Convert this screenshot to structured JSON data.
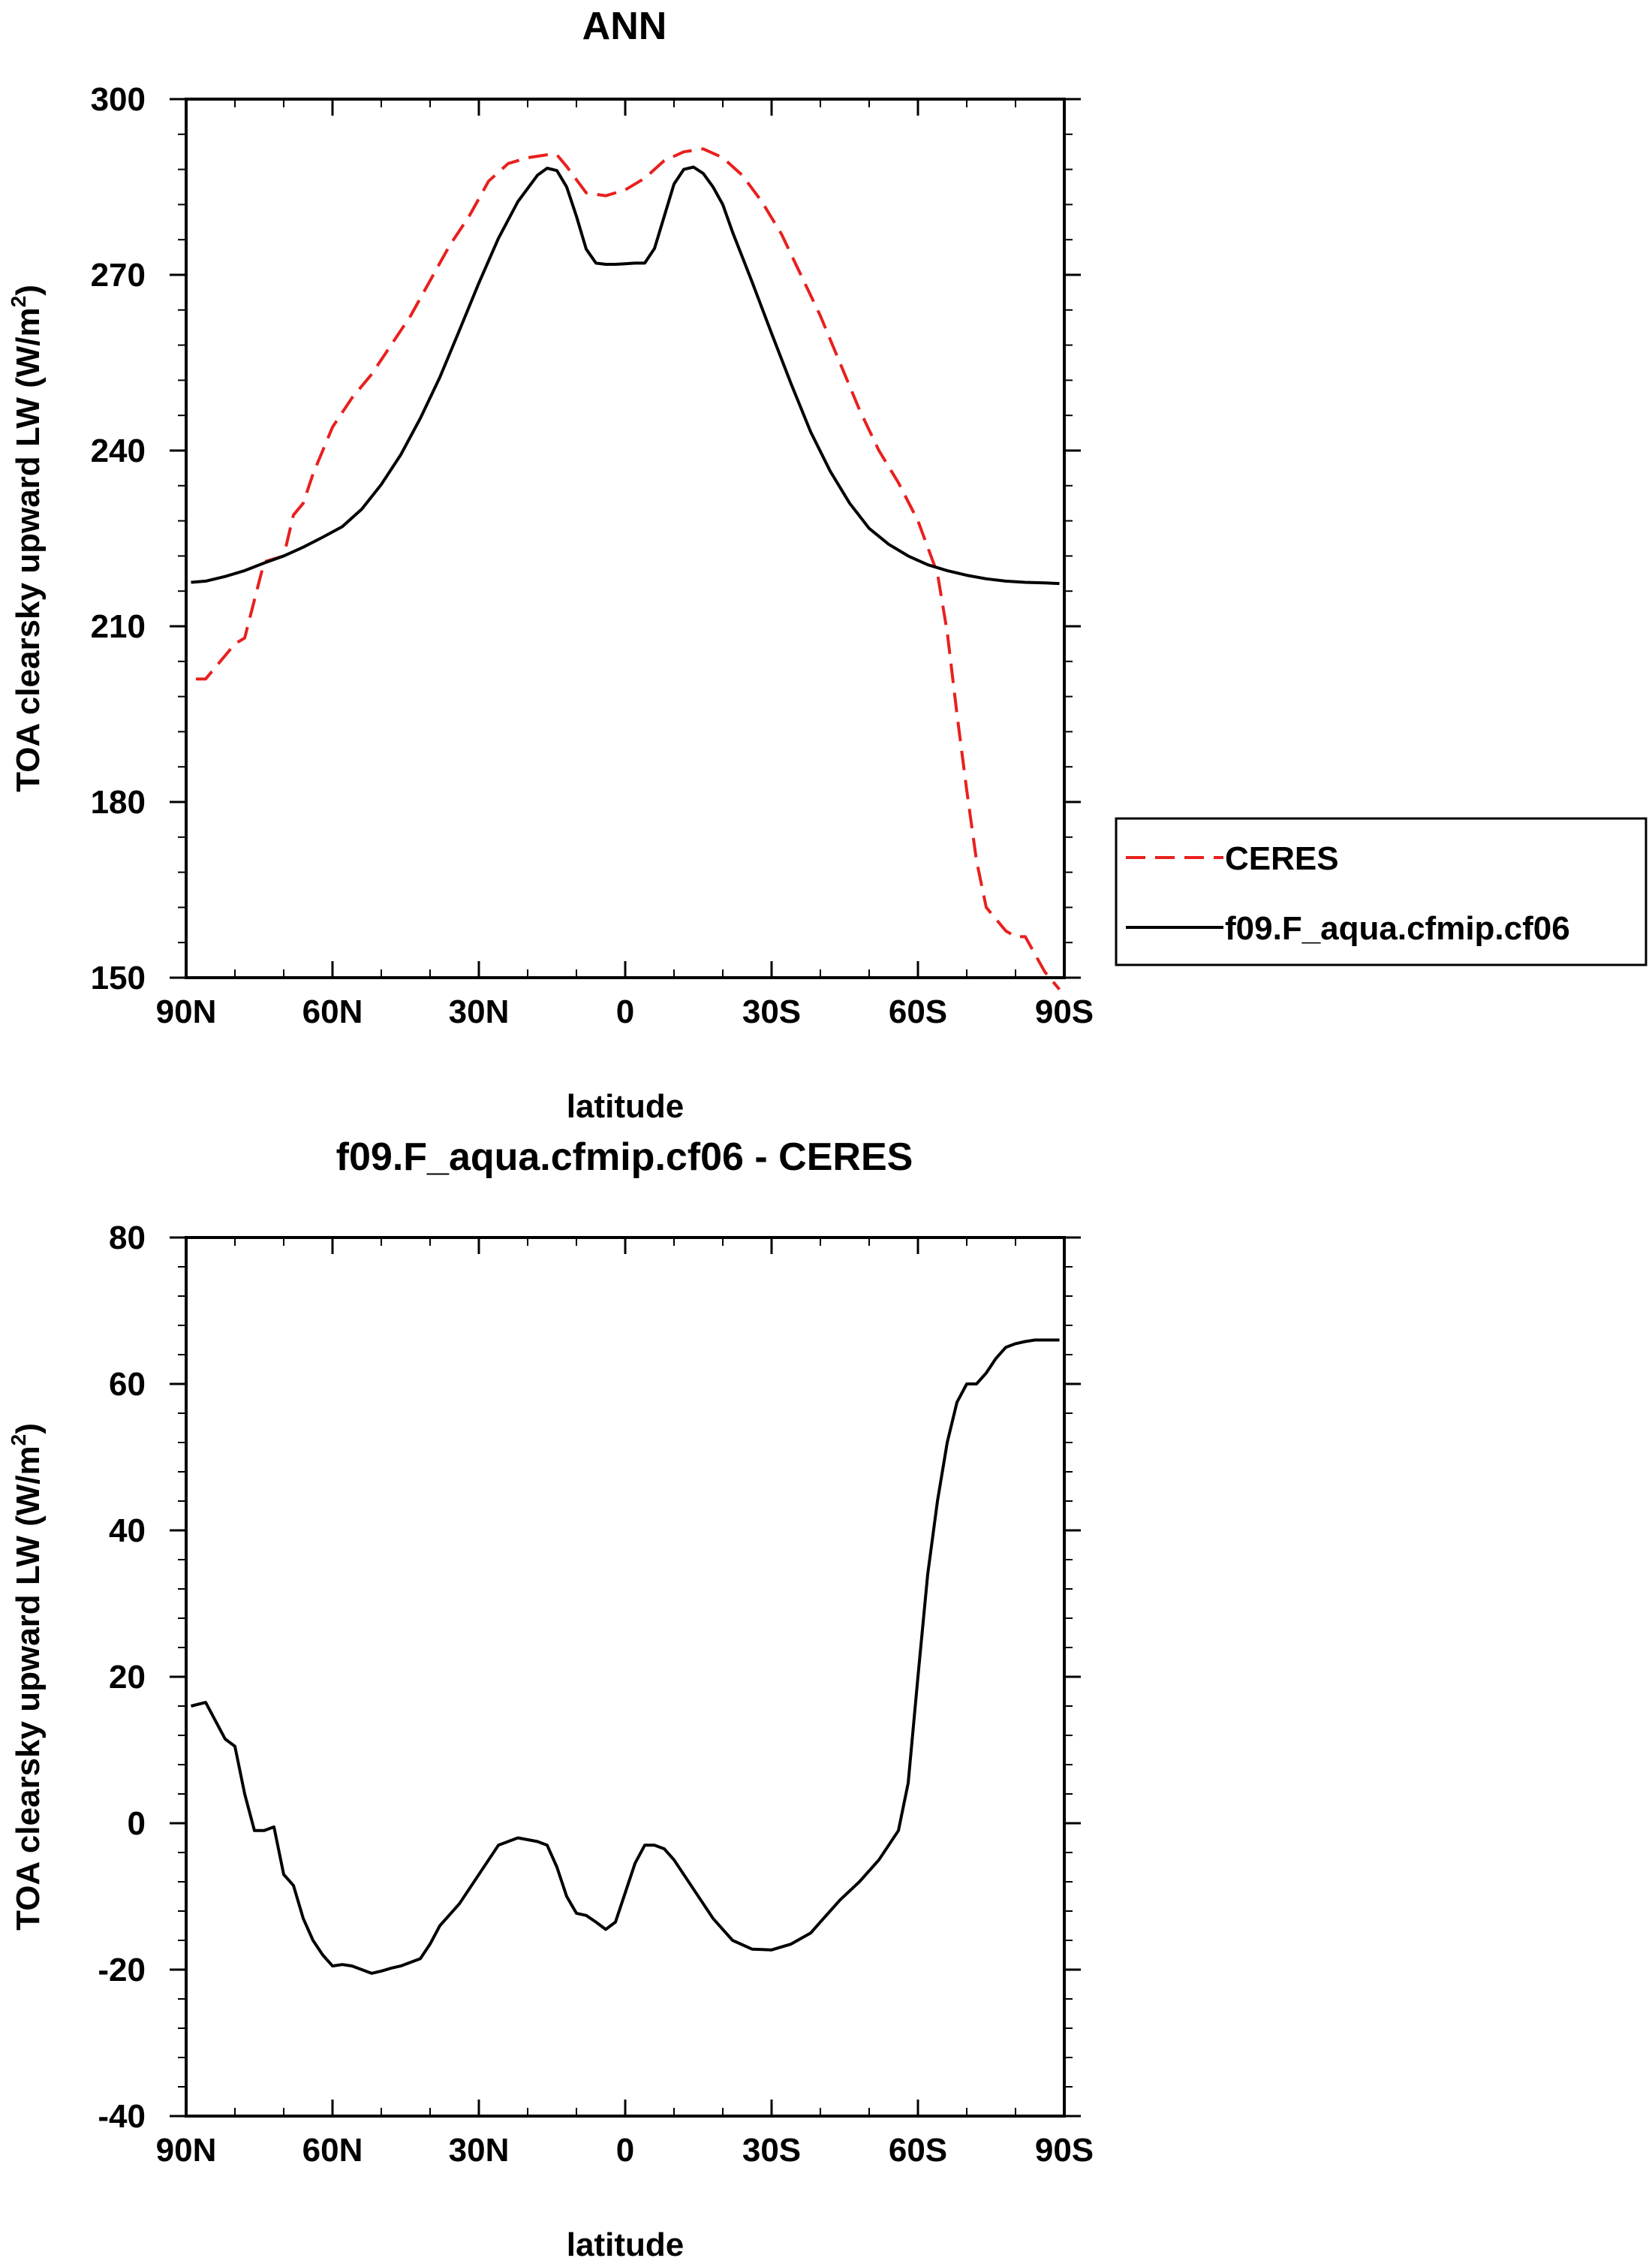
{
  "chart_data": [
    {
      "type": "line",
      "title": "ANN",
      "xlabel": "latitude",
      "ylabel": "TOA clearsky upward LW (W/m²)",
      "ylabel_parts": [
        "TOA clearsky upward LW (W/m",
        "2",
        ")"
      ],
      "xlim": [
        90,
        -90
      ],
      "ylim": [
        150,
        300
      ],
      "xticks": [
        90,
        60,
        30,
        0,
        -30,
        -60,
        -90
      ],
      "xtick_labels": [
        "90N",
        "60N",
        "30N",
        "0",
        "30S",
        "60S",
        "90S"
      ],
      "yticks": [
        150,
        180,
        210,
        240,
        270,
        300
      ],
      "ytick_labels": [
        "150",
        "180",
        "210",
        "240",
        "270",
        "300"
      ],
      "legend": [
        "CERES",
        "f09.F_aqua.cfmip.cf06"
      ],
      "series": [
        {
          "name": "CERES",
          "color": "#e8201e",
          "dash": "dashed",
          "x": [
            88,
            86,
            80,
            78,
            74,
            70,
            68,
            66,
            64,
            60,
            56,
            52,
            48,
            44,
            40,
            36,
            32,
            28,
            24,
            20,
            16,
            14,
            12,
            8,
            4,
            0,
            -4,
            -8,
            -12,
            -16,
            -20,
            -24,
            -28,
            -32,
            -36,
            -40,
            -44,
            -48,
            -52,
            -56,
            -60,
            -64,
            -66,
            -68,
            -70,
            -72,
            -74,
            -76,
            -78,
            -80,
            -82,
            -84,
            -86,
            -88,
            -89
          ],
          "y": [
            201,
            201,
            207,
            208,
            221,
            222,
            229,
            231,
            236,
            244,
            249,
            253,
            258,
            263,
            269,
            275,
            280,
            286,
            289,
            290,
            290.5,
            290.5,
            288.5,
            284,
            283.5,
            284.5,
            286.5,
            289.5,
            291,
            291.5,
            290,
            287,
            282.5,
            277,
            270,
            263,
            255,
            247,
            240,
            234.5,
            228,
            219,
            209,
            195,
            182,
            170,
            162,
            160,
            158,
            157,
            157,
            154,
            151,
            149,
            148
          ]
        },
        {
          "name": "f09.F_aqua.cfmip.cf06",
          "color": "#000000",
          "dash": "solid",
          "x": [
            89,
            86,
            82,
            78,
            74,
            70,
            66,
            62,
            58,
            54,
            50,
            46,
            42,
            38,
            34,
            30,
            26,
            22,
            18,
            16,
            14,
            12,
            10,
            8,
            6,
            4,
            2,
            0,
            -2,
            -4,
            -6,
            -8,
            -10,
            -12,
            -14,
            -16,
            -18,
            -20,
            -22,
            -26,
            -30,
            -34,
            -38,
            -42,
            -46,
            -50,
            -54,
            -58,
            -62,
            -66,
            -70,
            -74,
            -78,
            -82,
            -86,
            -89
          ],
          "y": [
            217.5,
            217.7,
            218.5,
            219.5,
            220.8,
            222,
            223.5,
            225.2,
            227,
            230,
            234.2,
            239.3,
            245.5,
            252.5,
            260.5,
            268.6,
            276.2,
            282.5,
            287,
            288.2,
            287.8,
            285,
            280,
            274.4,
            272,
            271.8,
            271.8,
            271.9,
            272,
            272,
            274.5,
            280,
            285.5,
            288,
            288.4,
            287.3,
            285,
            282,
            277.3,
            268.8,
            260,
            251.4,
            243.2,
            236.5,
            231,
            226.7,
            224,
            222,
            220.5,
            219.5,
            218.7,
            218.1,
            217.7,
            217.5,
            217.4,
            217.3
          ]
        }
      ]
    },
    {
      "type": "line",
      "title": "f09.F_aqua.cfmip.cf06 - CERES",
      "xlabel": "latitude",
      "ylabel": "TOA clearsky upward LW (W/m²)",
      "ylabel_parts": [
        "TOA clearsky upward LW (W/m",
        "2",
        ")"
      ],
      "xlim": [
        90,
        -90
      ],
      "ylim": [
        -40,
        80
      ],
      "xticks": [
        90,
        60,
        30,
        0,
        -30,
        -60,
        -90
      ],
      "xtick_labels": [
        "90N",
        "60N",
        "30N",
        "0",
        "30S",
        "60S",
        "90S"
      ],
      "yticks": [
        -40,
        -20,
        0,
        20,
        40,
        60,
        80
      ],
      "ytick_labels": [
        "-40",
        "-20",
        "0",
        "20",
        "40",
        "60",
        "80"
      ],
      "series": [
        {
          "name": "f09.F_aqua.cfmip.cf06 - CERES",
          "color": "#000000",
          "dash": "solid",
          "x": [
            89,
            86,
            82,
            80,
            78,
            76,
            74,
            72,
            70,
            68,
            66,
            64,
            62,
            60,
            58,
            56,
            54,
            52,
            50,
            48,
            46,
            44,
            42,
            40,
            38,
            36,
            34,
            30,
            26,
            22,
            18,
            16,
            14,
            12,
            10,
            8,
            6,
            4,
            2,
            0,
            -2,
            -4,
            -6,
            -8,
            -10,
            -12,
            -14,
            -16,
            -18,
            -20,
            -22,
            -26,
            -30,
            -34,
            -38,
            -40,
            -42,
            -44,
            -48,
            -52,
            -56,
            -58,
            -60,
            -62,
            -64,
            -66,
            -68,
            -70,
            -72,
            -74,
            -76,
            -78,
            -80,
            -82,
            -84,
            -86,
            -88,
            -89
          ],
          "y": [
            16,
            16.5,
            11.5,
            10.5,
            4,
            -1,
            -1,
            -0.5,
            -7,
            -8.5,
            -13,
            -16,
            -18,
            -19.5,
            -19.3,
            -19.5,
            -20,
            -20.5,
            -20.2,
            -19.8,
            -19.5,
            -19,
            -18.5,
            -16.5,
            -14,
            -12.5,
            -11,
            -7,
            -3,
            -2,
            -2.5,
            -3,
            -6,
            -10,
            -12.3,
            -12.6,
            -13.5,
            -14.5,
            -13.5,
            -9.5,
            -5.5,
            -3,
            -3,
            -3.5,
            -5,
            -7,
            -9,
            -11,
            -13,
            -14.5,
            -16,
            -17.2,
            -17.3,
            -16.5,
            -15,
            -13.5,
            -12,
            -10.5,
            -8,
            -5,
            -1,
            5.5,
            20,
            34,
            44,
            52,
            57.5,
            60,
            60,
            61.5,
            63.5,
            65,
            65.5,
            65.8,
            66,
            66,
            66,
            66
          ]
        }
      ]
    }
  ]
}
